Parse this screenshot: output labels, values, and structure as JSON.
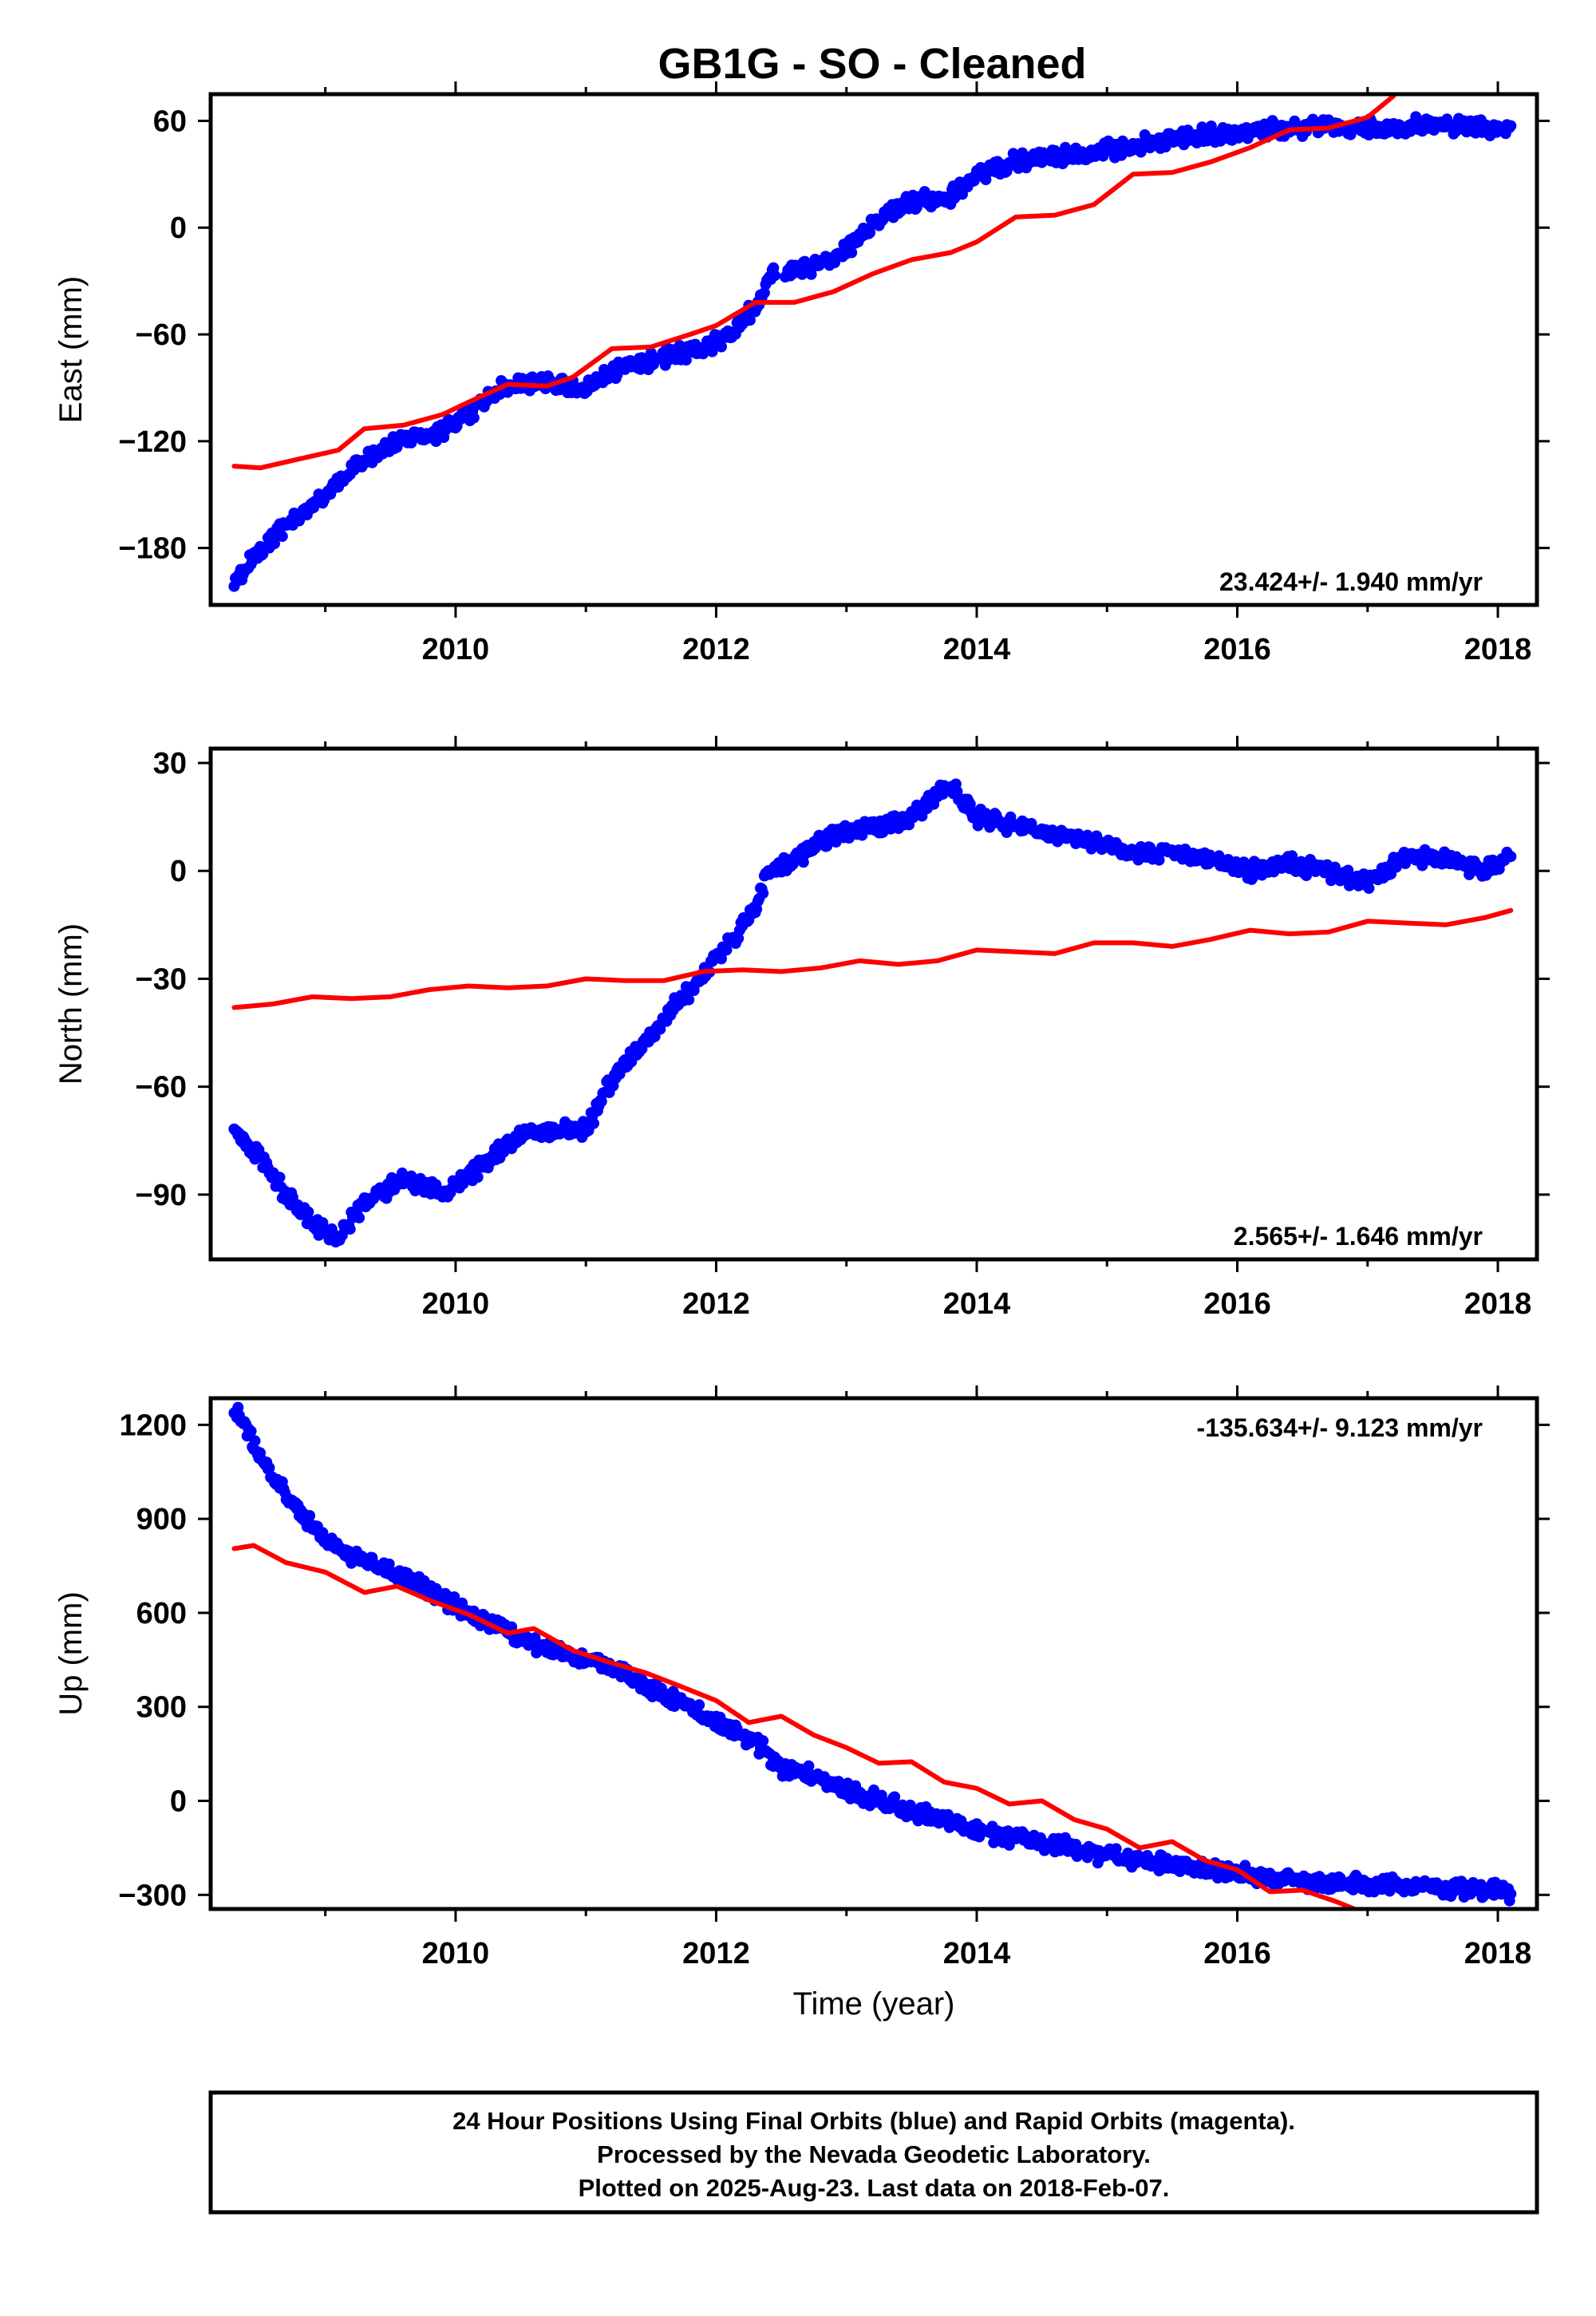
{
  "title": "GB1G  - SO - Cleaned",
  "footer": {
    "line1": "24 Hour Positions Using Final Orbits (blue) and Rapid Orbits (magenta).",
    "line2": "Processed by the Nevada Geodetic Laboratory.",
    "line3": "Plotted on 2025-Aug-23. Last data on 2018-Feb-07."
  },
  "colors": {
    "final_orbits": "#0000ff",
    "model_curve": "#ff0000",
    "frame": "#000000"
  },
  "chart_data": [
    {
      "type": "scatter",
      "ylabel": "East (mm)",
      "xlabel": "",
      "xlim": [
        2008.12,
        2018.3
      ],
      "ylim": [
        -212,
        75
      ],
      "xticks": [
        2010,
        2012,
        2014,
        2016,
        2018
      ],
      "yticks": [
        -180,
        -120,
        -60,
        0,
        60
      ],
      "rate_text": "23.424+/- 1.940 mm/yr",
      "rate_position": "bottom-right",
      "series": [
        {
          "kind": "points",
          "x": [
            2008.3,
            2008.5,
            2008.75,
            2009.0,
            2009.3,
            2009.6,
            2009.8,
            2010.0,
            2010.2,
            2010.4,
            2010.7,
            2011.0,
            2011.3,
            2011.6,
            2011.9,
            2012.1,
            2012.3,
            2012.4,
            2012.6,
            2012.9,
            2013.1,
            2013.4,
            2013.6,
            2013.8,
            2014.0,
            2014.3,
            2014.6,
            2014.9,
            2015.2,
            2015.5,
            2015.8,
            2016.1,
            2016.4,
            2016.7,
            2017.0,
            2017.3,
            2017.6,
            2017.9,
            2018.1
          ],
          "y": [
            -200,
            -180,
            -165,
            -150,
            -130,
            -118,
            -117,
            -110,
            -98,
            -88,
            -87,
            -90,
            -78,
            -73,
            -68,
            -60,
            -45,
            -28,
            -24,
            -18,
            -5,
            12,
            16,
            18,
            30,
            37,
            40,
            43,
            46,
            50,
            52,
            54,
            56,
            57,
            56,
            57,
            57,
            56,
            56
          ]
        },
        {
          "kind": "line",
          "x": [
            2008.3,
            2008.5,
            2008.8,
            2009.1,
            2009.3,
            2009.6,
            2009.9,
            2010.1,
            2010.4,
            2010.7,
            2010.9,
            2011.2,
            2011.5,
            2011.8,
            2012.0,
            2012.3,
            2012.6,
            2012.9,
            2013.2,
            2013.5,
            2013.8,
            2014.0,
            2014.3,
            2014.6,
            2014.9,
            2015.2,
            2015.5,
            2015.8,
            2016.1,
            2016.4,
            2016.7,
            2017.0,
            2017.2
          ],
          "y": [
            -134,
            -135,
            -130,
            -125,
            -113,
            -111,
            -105,
            -98,
            -88,
            -89,
            -84,
            -68,
            -67,
            -60,
            -55,
            -42,
            -42,
            -36,
            -26,
            -18,
            -14,
            -8,
            6,
            7,
            13,
            30,
            31,
            37,
            45,
            55,
            56,
            62,
            74
          ]
        }
      ]
    },
    {
      "type": "scatter",
      "ylabel": "North (mm)",
      "xlabel": "",
      "xlim": [
        2008.12,
        2018.3
      ],
      "ylim": [
        -108,
        34
      ],
      "xticks": [
        2010,
        2012,
        2014,
        2016,
        2018
      ],
      "yticks": [
        -90,
        -60,
        -30,
        0,
        30
      ],
      "rate_text": "2.565+/- 1.646 mm/yr",
      "rate_position": "bottom-right",
      "series": [
        {
          "kind": "points",
          "x": [
            2008.3,
            2008.5,
            2008.7,
            2008.9,
            2009.1,
            2009.3,
            2009.6,
            2009.9,
            2010.2,
            2010.5,
            2010.8,
            2011.0,
            2011.2,
            2011.5,
            2011.8,
            2012.1,
            2012.3,
            2012.4,
            2012.6,
            2012.9,
            2013.2,
            2013.5,
            2013.8,
            2014.0,
            2014.3,
            2014.6,
            2014.9,
            2015.2,
            2015.5,
            2015.8,
            2016.1,
            2016.4,
            2016.7,
            2017.0,
            2017.3,
            2017.6,
            2017.9,
            2018.1
          ],
          "y": [
            -72,
            -80,
            -90,
            -98,
            -103,
            -92,
            -86,
            -90,
            -82,
            -73,
            -72,
            -72,
            -58,
            -45,
            -33,
            -20,
            -10,
            0,
            3,
            10,
            12,
            15,
            24,
            15,
            12,
            10,
            8,
            5,
            5,
            3,
            0,
            2,
            0,
            -3,
            4,
            3,
            0,
            4
          ]
        },
        {
          "kind": "line",
          "x": [
            2008.3,
            2008.6,
            2008.9,
            2009.2,
            2009.5,
            2009.8,
            2010.1,
            2010.4,
            2010.7,
            2011.0,
            2011.3,
            2011.6,
            2011.9,
            2012.2,
            2012.5,
            2012.8,
            2013.1,
            2013.4,
            2013.7,
            2014.0,
            2014.3,
            2014.6,
            2014.9,
            2015.2,
            2015.5,
            2015.8,
            2016.1,
            2016.4,
            2016.7,
            2017.0,
            2017.3,
            2017.6,
            2017.9,
            2018.1
          ],
          "y": [
            -38,
            -37,
            -35,
            -35.5,
            -35,
            -33,
            -32,
            -32.5,
            -32,
            -30,
            -30.5,
            -30.5,
            -28,
            -27.5,
            -28,
            -27,
            -25,
            -26,
            -25,
            -22,
            -22.5,
            -23,
            -20,
            -20,
            -21,
            -19,
            -16.5,
            -17.5,
            -17,
            -14,
            -14.5,
            -15,
            -13,
            -11
          ]
        }
      ]
    },
    {
      "type": "scatter",
      "ylabel": "Up (mm)",
      "xlabel": "Time (year)",
      "xlim": [
        2008.12,
        2018.3
      ],
      "ylim": [
        -345,
        1285
      ],
      "xticks": [
        2010,
        2012,
        2014,
        2016,
        2018
      ],
      "yticks": [
        -300,
        0,
        300,
        600,
        900,
        1200
      ],
      "rate_text": "-135.634+/- 9.123 mm/yr",
      "rate_position": "top-right",
      "series": [
        {
          "kind": "points",
          "x": [
            2008.3,
            2008.4,
            2008.6,
            2008.8,
            2009.0,
            2009.2,
            2009.5,
            2009.8,
            2010.0,
            2010.3,
            2010.6,
            2010.9,
            2011.2,
            2011.5,
            2011.8,
            2012.0,
            2012.3,
            2012.5,
            2012.8,
            2013.1,
            2013.4,
            2013.7,
            2014.0,
            2014.3,
            2014.6,
            2014.9,
            2015.2,
            2015.5,
            2015.8,
            2016.1,
            2016.4,
            2016.7,
            2017.0,
            2017.3,
            2017.6,
            2017.9,
            2018.1
          ],
          "y": [
            1255,
            1180,
            1030,
            920,
            840,
            780,
            730,
            680,
            620,
            560,
            500,
            460,
            420,
            360,
            300,
            250,
            190,
            110,
            70,
            20,
            -20,
            -60,
            -90,
            -120,
            -140,
            -165,
            -185,
            -205,
            -220,
            -235,
            -250,
            -260,
            -265,
            -270,
            -280,
            -285,
            -290
          ]
        },
        {
          "kind": "line",
          "x": [
            2008.3,
            2008.45,
            2008.7,
            2009.0,
            2009.3,
            2009.55,
            2009.8,
            2010.1,
            2010.4,
            2010.6,
            2010.9,
            2011.2,
            2011.45,
            2011.7,
            2012.0,
            2012.25,
            2012.5,
            2012.75,
            2013.0,
            2013.25,
            2013.5,
            2013.75,
            2014.0,
            2014.25,
            2014.5,
            2014.75,
            2015.0,
            2015.25,
            2015.5,
            2015.75,
            2016.0,
            2016.25,
            2016.5,
            2016.75,
            2016.9
          ],
          "y": [
            805,
            815,
            760,
            730,
            665,
            685,
            640,
            595,
            535,
            550,
            480,
            440,
            410,
            370,
            320,
            250,
            270,
            210,
            170,
            120,
            125,
            60,
            40,
            -10,
            0,
            -60,
            -90,
            -150,
            -130,
            -190,
            -220,
            -290,
            -285,
            -320,
            -345
          ]
        }
      ]
    }
  ]
}
